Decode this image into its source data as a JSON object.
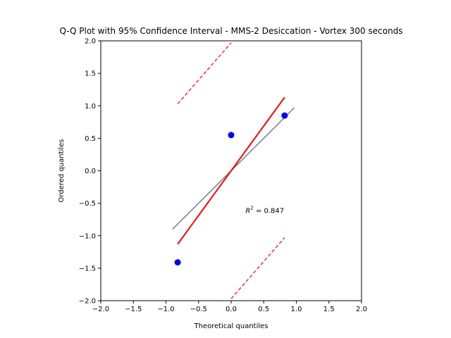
{
  "chart_data": {
    "type": "scatter",
    "title": "Q-Q Plot with 95% Confidence Interval - MMS-2 Desiccation - Vortex 300 seconds",
    "xlabel": "Theoretical quantiles",
    "ylabel": "Ordered quantiles",
    "xlim": [
      -2.0,
      2.0
    ],
    "ylim": [
      -2.0,
      2.0
    ],
    "xticks": [
      -2.0,
      -1.5,
      -1.0,
      -0.5,
      0.0,
      0.5,
      1.0,
      1.5,
      2.0
    ],
    "yticks": [
      -2.0,
      -1.5,
      -1.0,
      -0.5,
      0.0,
      0.5,
      1.0,
      1.5,
      2.0
    ],
    "xtick_labels": [
      "−2.0",
      "−1.5",
      "−1.0",
      "−0.5",
      "0.0",
      "0.5",
      "1.0",
      "1.5",
      "2.0"
    ],
    "ytick_labels": [
      "−2.0",
      "−1.5",
      "−1.0",
      "−0.5",
      "0.0",
      "0.5",
      "1.0",
      "1.5",
      "2.0"
    ],
    "grid": false,
    "points": {
      "color": "#0000ff",
      "x": [
        -0.82,
        0.0,
        0.82
      ],
      "y": [
        -1.41,
        0.55,
        0.85
      ]
    },
    "reference_line": {
      "color": "#708090",
      "x": [
        -0.9,
        0.97
      ],
      "y": [
        -0.9,
        0.97
      ]
    },
    "fit_line": {
      "color": "#ff0000",
      "x": [
        -0.82,
        0.82
      ],
      "y": [
        -1.13,
        1.13
      ]
    },
    "ci_upper": {
      "color": "#ff0000",
      "style": "dashed",
      "x": [
        -0.82,
        0.0
      ],
      "y": [
        1.03,
        1.97
      ]
    },
    "ci_lower": {
      "color": "#ff0000",
      "style": "dashed",
      "x": [
        0.0,
        0.82
      ],
      "y": [
        -1.97,
        -1.03
      ]
    },
    "annotation": {
      "x": 0.22,
      "y": -0.65,
      "prefix": "R",
      "superscript": "2",
      "suffix": " = 0.847"
    }
  }
}
